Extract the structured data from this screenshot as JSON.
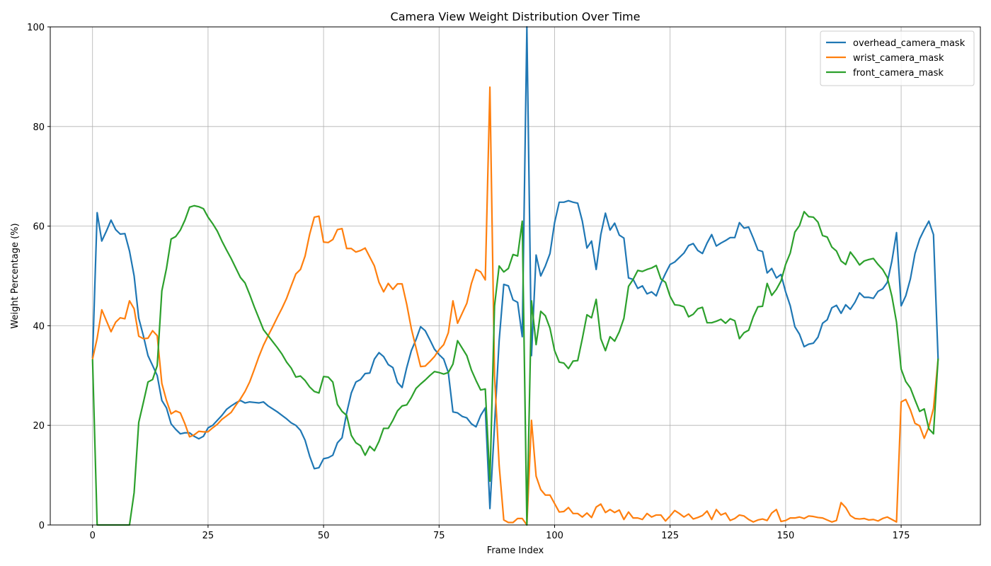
{
  "chart_data": {
    "type": "line",
    "title": "Camera View Weight Distribution Over Time",
    "xlabel": "Frame Index",
    "ylabel": "Weight Percentage (%)",
    "x": [
      0,
      1,
      2,
      3,
      4,
      5,
      6,
      7,
      8,
      9,
      10,
      11,
      12,
      13,
      14,
      15,
      16,
      17,
      18,
      19,
      20,
      21,
      22,
      23,
      24,
      25,
      26,
      27,
      28,
      29,
      30,
      31,
      32,
      33,
      34,
      35,
      36,
      37,
      38,
      39,
      40,
      41,
      42,
      43,
      44,
      45,
      46,
      47,
      48,
      49,
      50,
      51,
      52,
      53,
      54,
      55,
      56,
      57,
      58,
      59,
      60,
      61,
      62,
      63,
      64,
      65,
      66,
      67,
      68,
      69,
      70,
      71,
      72,
      73,
      74,
      75,
      76,
      77,
      78,
      79,
      80,
      81,
      82,
      83,
      84,
      85,
      86,
      87,
      88,
      89,
      90,
      91,
      92,
      93,
      94,
      95,
      96,
      97,
      98,
      99,
      100,
      101,
      102,
      103,
      104,
      105,
      106,
      107,
      108,
      109,
      110,
      111,
      112,
      113,
      114,
      115,
      116,
      117,
      118,
      119,
      120,
      121,
      122,
      123,
      124,
      125,
      126,
      127,
      128,
      129,
      130,
      131,
      132,
      133,
      134,
      135,
      136,
      137,
      138,
      139,
      140,
      141,
      142,
      143,
      144,
      145,
      146,
      147,
      148,
      149,
      150,
      151,
      152,
      153,
      154,
      155,
      156,
      157,
      158,
      159,
      160,
      161,
      162,
      163,
      164,
      165,
      166,
      167,
      168,
      169,
      170,
      171,
      172,
      173,
      174,
      175,
      176,
      177,
      178,
      179,
      180,
      181,
      182,
      183
    ],
    "series": [
      {
        "name": "overhead_camera_mask",
        "color": "#1f77b4",
        "values": [
          33.5,
          62.7,
          57,
          59,
          61.2,
          59.3,
          58.4,
          58.5,
          55,
          50,
          41.5,
          38,
          34,
          32,
          30,
          25,
          23.5,
          20.3,
          19.2,
          18.3,
          18.5,
          18.5,
          17.8,
          17.3,
          17.8,
          19.5,
          20,
          21,
          22,
          23.2,
          23.9,
          24.5,
          25,
          24.5,
          24.7,
          24.6,
          24.5,
          24.7,
          23.9,
          23.3,
          22.7,
          22,
          21.3,
          20.5,
          20,
          19,
          17,
          13.8,
          11.3,
          11.5,
          13.3,
          13.5,
          14,
          16.5,
          17.5,
          22.5,
          26.5,
          28.7,
          29.2,
          30.4,
          30.5,
          33.3,
          34.6,
          33.8,
          32.2,
          31.6,
          28.6,
          27.6,
          31.6,
          35,
          37.2,
          39.8,
          39,
          37.2,
          35.3,
          34.2,
          33.3,
          30.6,
          22.7,
          22.5,
          21.8,
          21.5,
          20.3,
          19.7,
          22,
          23.5,
          3.3,
          20,
          37,
          48.3,
          48,
          45.2,
          44.7,
          37.8,
          100,
          34,
          54.2,
          50,
          52,
          54.5,
          60.7,
          64.8,
          64.8,
          65.1,
          64.8,
          64.6,
          61,
          55.6,
          57,
          51.3,
          58.3,
          62.6,
          59.2,
          60.6,
          58.2,
          57.6,
          49.6,
          49.3,
          47.5,
          48,
          46.4,
          46.8,
          46,
          48.5,
          50.5,
          52.3,
          52.8,
          53.7,
          54.6,
          56.1,
          56.5,
          55.1,
          54.5,
          56.6,
          58.3,
          56,
          56.6,
          57.1,
          57.7,
          57.7,
          60.7,
          59.6,
          59.8,
          57.6,
          55.2,
          54.9,
          50.6,
          51.5,
          49.6,
          50.3,
          46.8,
          44,
          39.8,
          38.3,
          35.8,
          36.3,
          36.5,
          37.7,
          40.5,
          41.2,
          43.6,
          44.1,
          42.5,
          44.2,
          43.3,
          44.7,
          46.6,
          45.7,
          45.7,
          45.5,
          46.9,
          47.4,
          48.7,
          53,
          58.7,
          44,
          46,
          49.4,
          54.5,
          57.4,
          59.3,
          61,
          58.3,
          33.3
        ]
      },
      {
        "name": "wrist_camera_mask",
        "color": "#ff7f0e",
        "values": [
          33.3,
          37.5,
          43.2,
          41,
          38.8,
          40.7,
          41.6,
          41.4,
          45,
          43.4,
          37.9,
          37.4,
          37.5,
          39,
          38,
          28.4,
          25,
          22.3,
          22.9,
          22.5,
          20.3,
          17.7,
          18.1,
          18.8,
          18.7,
          18.7,
          19.5,
          20.2,
          21.2,
          21.9,
          22.6,
          24,
          25.3,
          26.8,
          28.7,
          31.2,
          33.8,
          36.1,
          38,
          39.8,
          41.7,
          43.5,
          45.5,
          48,
          50.4,
          51.3,
          54,
          58.4,
          61.8,
          62,
          56.8,
          56.7,
          57.3,
          59.3,
          59.5,
          55.5,
          55.5,
          54.8,
          55.1,
          55.6,
          53.8,
          52,
          48.7,
          46.8,
          48.5,
          47.3,
          48.4,
          48.4,
          44.3,
          39.4,
          35.6,
          31.8,
          31.9,
          32.8,
          33.8,
          35.2,
          36.2,
          38.6,
          45,
          40.5,
          42.5,
          44.5,
          48.5,
          51.3,
          50.8,
          49.2,
          87.9,
          30,
          12,
          1,
          0.5,
          0.5,
          1.3,
          1.3,
          0,
          21,
          9.8,
          7.1,
          6,
          6,
          4.3,
          2.6,
          2.7,
          3.5,
          2.3,
          2.3,
          1.6,
          2.4,
          1.5,
          3.6,
          4.2,
          2.5,
          3.1,
          2.5,
          3,
          1.1,
          2.6,
          1.4,
          1.4,
          1.1,
          2.3,
          1.6,
          2,
          2,
          0.8,
          1.8,
          2.9,
          2.3,
          1.6,
          2.2,
          1.2,
          1.5,
          1.9,
          2.8,
          1.1,
          3.1,
          2,
          2.4,
          0.9,
          1.3,
          2,
          1.8,
          1.1,
          0.6,
          1,
          1.2,
          0.9,
          2.4,
          3.1,
          0.7,
          0.9,
          1.4,
          1.4,
          1.6,
          1.3,
          1.8,
          1.7,
          1.5,
          1.4,
          1,
          0.6,
          0.9,
          4.5,
          3.5,
          1.9,
          1.3,
          1.2,
          1.3,
          1,
          1.1,
          0.8,
          1.3,
          1.6,
          1.1,
          0.6,
          24.7,
          25.2,
          23.1,
          20.4,
          19.9,
          17.4,
          19.7,
          23.4,
          33.3
        ]
      },
      {
        "name": "front_camera_mask",
        "color": "#2ca02c",
        "values": [
          33.3,
          0,
          0,
          0,
          0,
          0,
          0,
          0,
          0,
          6.5,
          20.6,
          24.6,
          28.7,
          29.2,
          32,
          47,
          51.5,
          57.4,
          57.9,
          59.2,
          61.2,
          63.8,
          64.1,
          63.9,
          63.5,
          61.8,
          60.5,
          59,
          57,
          55.2,
          53.5,
          51.6,
          49.7,
          48.6,
          46.3,
          43.8,
          41.5,
          39.2,
          38,
          36.8,
          35.6,
          34.3,
          32.7,
          31.5,
          29.7,
          29.9,
          29,
          27.7,
          26.8,
          26.5,
          29.8,
          29.7,
          28.7,
          24.2,
          22.8,
          22,
          18,
          16.5,
          15.9,
          14,
          15.8,
          14.9,
          16.8,
          19.4,
          19.4,
          21,
          22.9,
          23.9,
          24.1,
          25.6,
          27.4,
          28.3,
          29.1,
          30,
          30.8,
          30.6,
          30.3,
          30.6,
          32.3,
          37,
          35.5,
          34,
          31.1,
          29,
          27.1,
          27.3,
          8.8,
          44,
          52,
          50.8,
          51.5,
          54.3,
          54,
          61,
          0,
          45,
          36.2,
          42.9,
          42,
          39.5,
          35,
          32.7,
          32.5,
          31.4,
          32.9,
          33,
          37.4,
          42.2,
          41.6,
          45.3,
          37.4,
          35,
          37.8,
          36.9,
          38.8,
          41.5,
          47.9,
          49.3,
          51.1,
          50.9,
          51.3,
          51.6,
          52.1,
          49.4,
          48.7,
          45.9,
          44.2,
          44.1,
          43.8,
          41.8,
          42.3,
          43.4,
          43.7,
          40.6,
          40.6,
          40.9,
          41.3,
          40.5,
          41.4,
          41,
          37.4,
          38.6,
          39.1,
          41.8,
          43.8,
          43.9,
          48.5,
          46.1,
          47.3,
          49,
          52.3,
          54.6,
          58.8,
          60.1,
          62.9,
          61.9,
          61.8,
          60.8,
          58.1,
          57.8,
          55.8,
          55,
          53,
          52.3,
          54.8,
          53.6,
          52.2,
          53,
          53.3,
          53.5,
          52.3,
          51.3,
          49.7,
          45.9,
          40.7,
          31.3,
          28.8,
          27.5,
          25.1,
          22.8,
          23.3,
          19.3,
          18.3,
          33.4
        ]
      }
    ],
    "xlim": [
      -9.15,
      192.15
    ],
    "xticks": [
      0,
      25,
      50,
      75,
      100,
      125,
      150,
      175
    ],
    "ylim": [
      0,
      100
    ],
    "yticks": [
      0,
      20,
      40,
      60,
      80,
      100
    ],
    "grid": true,
    "legend": "upper right"
  }
}
